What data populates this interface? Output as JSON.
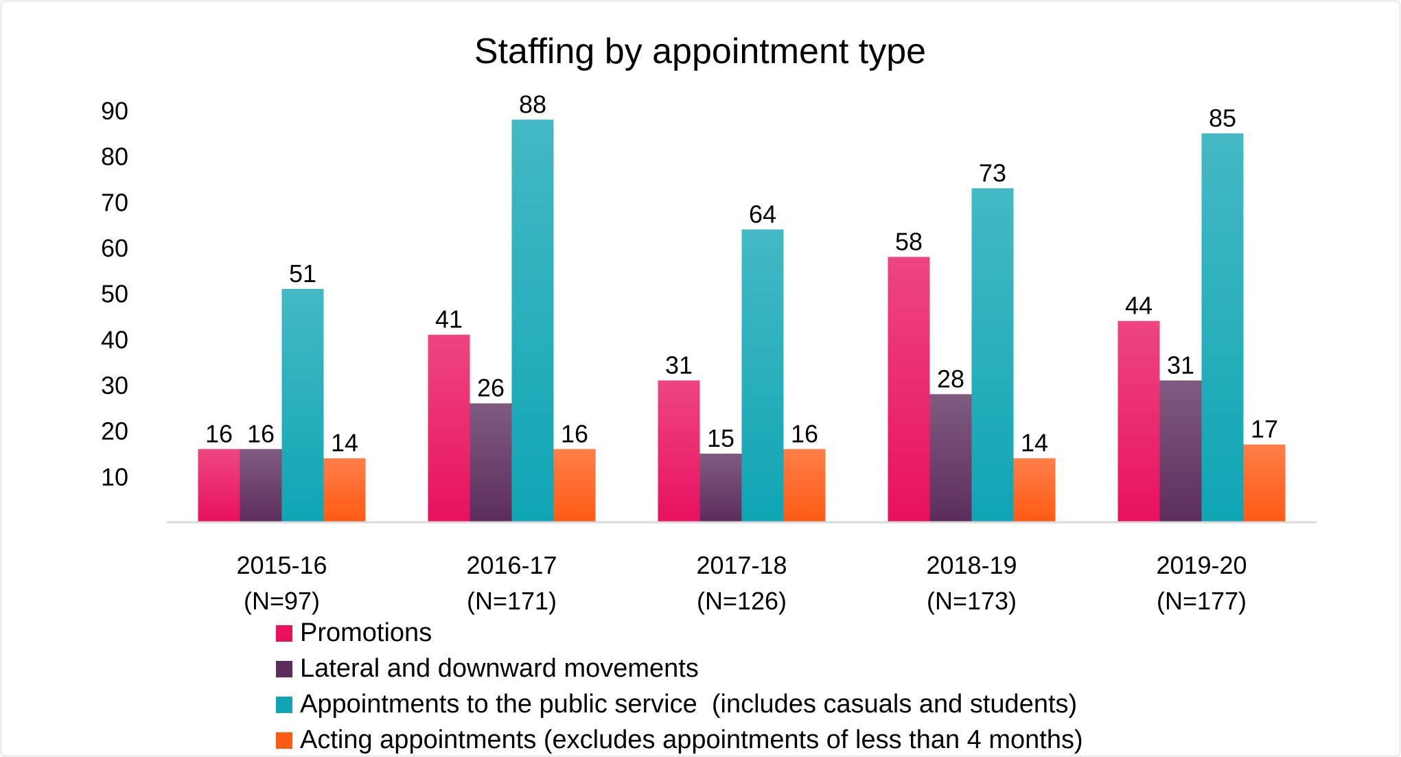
{
  "chart_data": {
    "type": "bar",
    "title": "Staffing by appointment type",
    "xlabel": "",
    "ylabel": "",
    "ylim": [
      0,
      90
    ],
    "yticks": [
      10,
      20,
      30,
      40,
      50,
      60,
      70,
      80,
      90
    ],
    "grid": false,
    "legend_position": "bottom-left",
    "categories": [
      {
        "label": "2015-16",
        "sublabel": "(N=97)"
      },
      {
        "label": "2016-17",
        "sublabel": "(N=171)"
      },
      {
        "label": "2017-18",
        "sublabel": "(N=126)"
      },
      {
        "label": "2018-19",
        "sublabel": "(N=173)"
      },
      {
        "label": "2019-20",
        "sublabel": "(N=177)"
      }
    ],
    "series": [
      {
        "name": "Promotions",
        "color": "#e8115e",
        "values": [
          16,
          41,
          31,
          58,
          44
        ]
      },
      {
        "name": "Lateral and downward movements",
        "color": "#5c2d5c",
        "values": [
          16,
          26,
          15,
          28,
          31
        ]
      },
      {
        "name": "Appointments to the public service  (includes casuals and students)",
        "color": "#0fa5b4",
        "values": [
          51,
          88,
          64,
          73,
          85
        ]
      },
      {
        "name": "Acting appointments (excludes appointments of less than 4 months)",
        "color": "#ff5a14",
        "values": [
          14,
          16,
          16,
          14,
          17
        ]
      }
    ]
  }
}
